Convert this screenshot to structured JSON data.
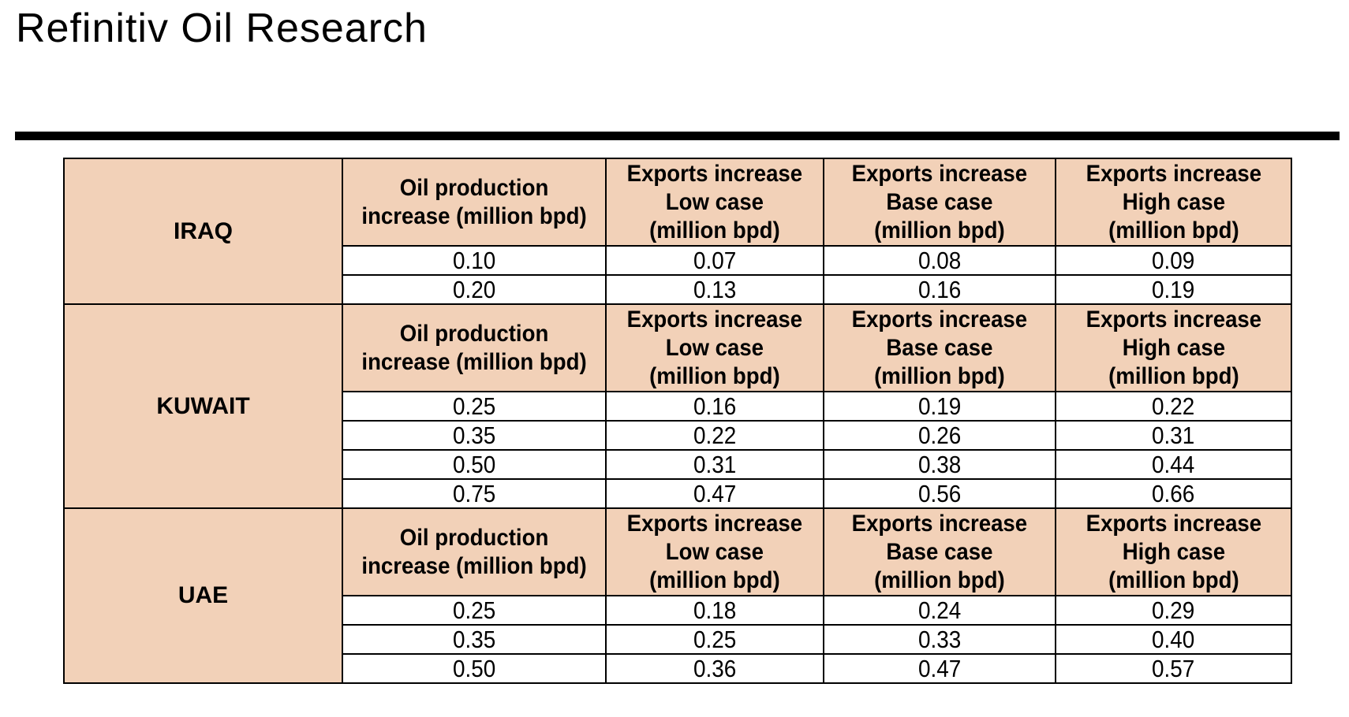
{
  "title": "Refinitiv Oil Research",
  "headers": {
    "production": [
      "Oil production",
      "increase (million bpd)"
    ],
    "low": [
      "Exports increase",
      "Low case",
      "(million bpd)"
    ],
    "base": [
      "Exports increase",
      "Base case",
      "(million bpd)"
    ],
    "high": [
      "Exports increase",
      "High case",
      "(million bpd)"
    ]
  },
  "sections": [
    {
      "country": "IRAQ",
      "rows": [
        [
          "0.10",
          "0.07",
          "0.08",
          "0.09"
        ],
        [
          "0.20",
          "0.13",
          "0.16",
          "0.19"
        ]
      ]
    },
    {
      "country": "KUWAIT",
      "rows": [
        [
          "0.25",
          "0.16",
          "0.19",
          "0.22"
        ],
        [
          "0.35",
          "0.22",
          "0.26",
          "0.31"
        ],
        [
          "0.50",
          "0.31",
          "0.38",
          "0.44"
        ],
        [
          "0.75",
          "0.47",
          "0.56",
          "0.66"
        ]
      ]
    },
    {
      "country": "UAE",
      "rows": [
        [
          "0.25",
          "0.18",
          "0.24",
          "0.29"
        ],
        [
          "0.35",
          "0.25",
          "0.33",
          "0.40"
        ],
        [
          "0.50",
          "0.36",
          "0.47",
          "0.57"
        ]
      ]
    }
  ],
  "colors": {
    "header_bg": "#f2d1b8"
  }
}
